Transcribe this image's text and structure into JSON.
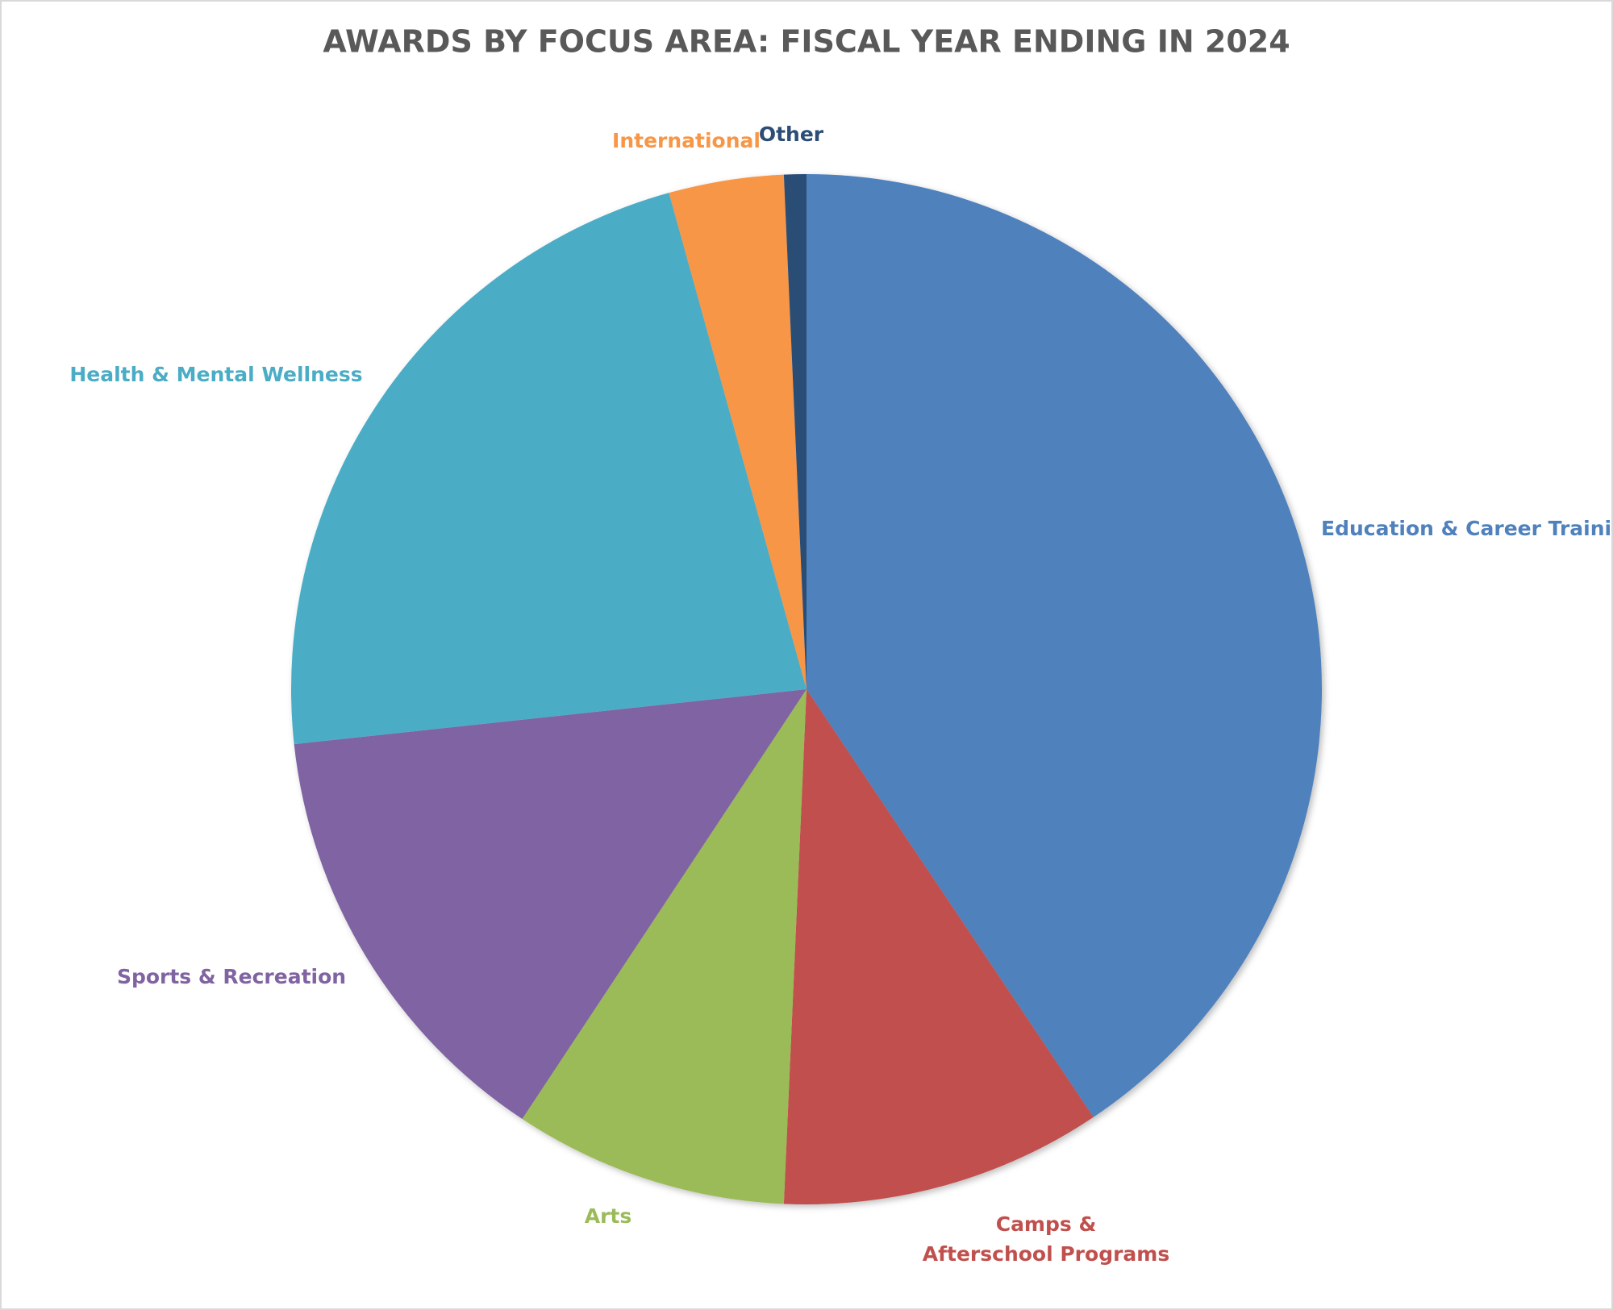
{
  "chart_data": {
    "type": "pie",
    "title": "AWARDS BY FOCUS AREA: FISCAL YEAR ENDING IN 2024",
    "categories": [
      "Education & Career Training",
      "Camps & Afterschool Programs",
      "Arts",
      "Sports & Recreation",
      "Health & Mental Wellness",
      "International",
      "Other"
    ],
    "values": [
      40.6,
      10.1,
      8.6,
      14.0,
      22.4,
      3.6,
      0.7
    ],
    "colors": [
      "#4F81BD",
      "#C0504D",
      "#9BBB59",
      "#8064A2",
      "#4BACC6",
      "#F79646",
      "#2C4D75"
    ]
  }
}
